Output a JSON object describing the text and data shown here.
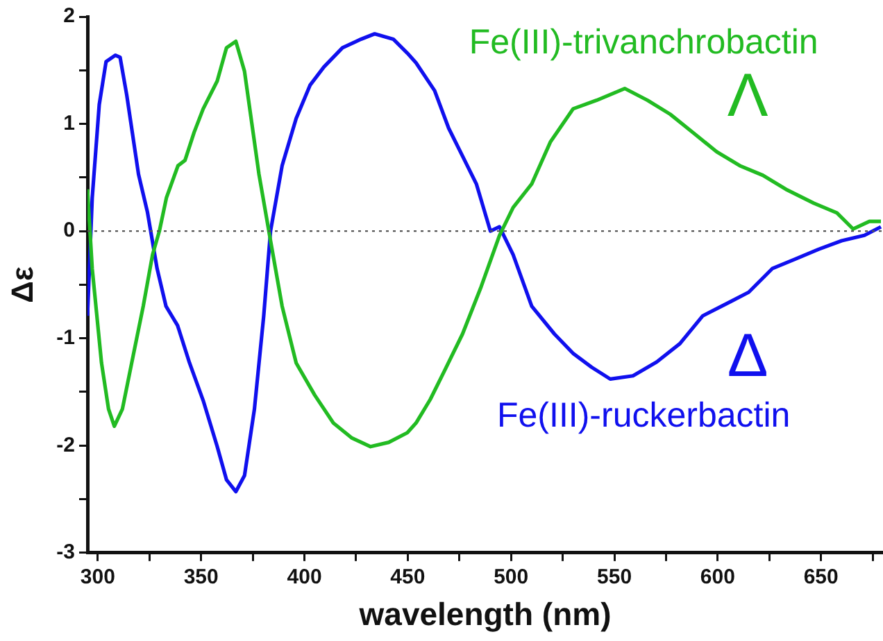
{
  "chart_data": {
    "type": "line",
    "xlabel": "wavelength (nm)",
    "ylabel": "Δε",
    "xlim": [
      295,
      680
    ],
    "ylim": [
      -3,
      2
    ],
    "xticks": [
      300,
      {
        "value": 325,
        "label": null
      },
      350,
      {
        "value": 375,
        "label": null
      },
      400,
      {
        "value": 425,
        "label": null
      },
      450,
      {
        "value": 475,
        "label": null
      },
      500,
      {
        "value": 525,
        "label": null
      },
      550,
      {
        "value": 575,
        "label": null
      },
      600,
      {
        "value": 625,
        "label": null
      },
      650,
      {
        "value": 675,
        "label": null
      }
    ],
    "yticks": [
      -3,
      {
        "value": -2.5,
        "label": null
      },
      -2,
      {
        "value": -1.5,
        "label": null
      },
      -1,
      {
        "value": -0.5,
        "label": null
      },
      0,
      {
        "value": 0.5,
        "label": null
      },
      1,
      {
        "value": 1.5,
        "label": null
      },
      2
    ],
    "grid": false,
    "legend": false,
    "marker": "none",
    "line_style": "solid",
    "ref_lines": [
      {
        "axis": "y",
        "value": 0,
        "line_style": "dotted",
        "color": "#555555"
      }
    ],
    "annotations": [
      "Λ",
      "Δ"
    ],
    "series": [
      {
        "name": "Fe(III)-trivanchrobactin",
        "color": "#22bb22",
        "x": [
          295,
          297.3,
          301.8,
          305.2,
          308,
          311.9,
          316.4,
          322,
          326.5,
          329.8,
          333.2,
          338.8,
          342.2,
          346.6,
          351,
          357.8,
          362.3,
          366.8,
          371,
          378,
          383.6,
          389.2,
          396,
          405,
          414,
          423,
          432,
          440.8,
          449.8,
          454,
          460.9,
          467.6,
          476.5,
          485.5,
          494.4,
          501,
          510,
          519,
          530,
          541.4,
          555,
          566,
          577,
          588,
          599.5,
          610.7,
          621.9,
          633,
          646.5,
          657.7,
          665.5,
          673.4,
          679
        ],
        "values": [
          0.39,
          -0.35,
          -1.23,
          -1.66,
          -1.82,
          -1.66,
          -1.23,
          -0.7,
          -0.22,
          0,
          0.31,
          0.61,
          0.66,
          0.92,
          1.14,
          1.4,
          1.71,
          1.77,
          1.49,
          0.53,
          -0.09,
          -0.7,
          -1.23,
          -1.53,
          -1.79,
          -1.93,
          -2.01,
          -1.97,
          -1.88,
          -1.79,
          -1.57,
          -1.31,
          -0.96,
          -0.52,
          -0.04,
          0.22,
          0.44,
          0.83,
          1.14,
          1.22,
          1.33,
          1.22,
          1.09,
          0.92,
          0.74,
          0.61,
          0.52,
          0.39,
          0.26,
          0.17,
          0.02,
          0.09,
          0.09
        ]
      },
      {
        "name": "Fe(III)-ruckerbactin",
        "color": "#1010ee",
        "x": [
          295,
          297.3,
          300.7,
          304,
          308.5,
          310.8,
          314,
          319.7,
          324,
          328.7,
          333,
          338.6,
          344.4,
          351,
          357.8,
          362.3,
          366.8,
          371,
          375.8,
          380.3,
          383.6,
          389.2,
          396,
          402.7,
          409.4,
          418.4,
          427.4,
          434,
          443,
          449.8,
          454,
          463,
          469.8,
          476.5,
          483.2,
          490,
          494.4,
          501,
          510,
          521,
          530,
          539,
          548,
          559,
          570.5,
          581.7,
          592.8,
          606,
          615,
          626.4,
          637.6,
          648.8,
          660,
          671,
          679
        ],
        "values": [
          -0.79,
          0.31,
          1.18,
          1.58,
          1.64,
          1.62,
          1.27,
          0.53,
          0.18,
          -0.35,
          -0.7,
          -0.88,
          -1.23,
          -1.58,
          -2.01,
          -2.32,
          -2.43,
          -2.28,
          -1.66,
          -0.79,
          0,
          0.61,
          1.05,
          1.36,
          1.53,
          1.71,
          1.79,
          1.84,
          1.79,
          1.66,
          1.57,
          1.31,
          0.96,
          0.7,
          0.44,
          0,
          0.04,
          -0.22,
          -0.7,
          -0.96,
          -1.14,
          -1.27,
          -1.38,
          -1.35,
          -1.22,
          -1.05,
          -0.79,
          -0.66,
          -0.57,
          -0.35,
          -0.26,
          -0.17,
          -0.09,
          -0.04,
          0.04
        ]
      }
    ]
  }
}
